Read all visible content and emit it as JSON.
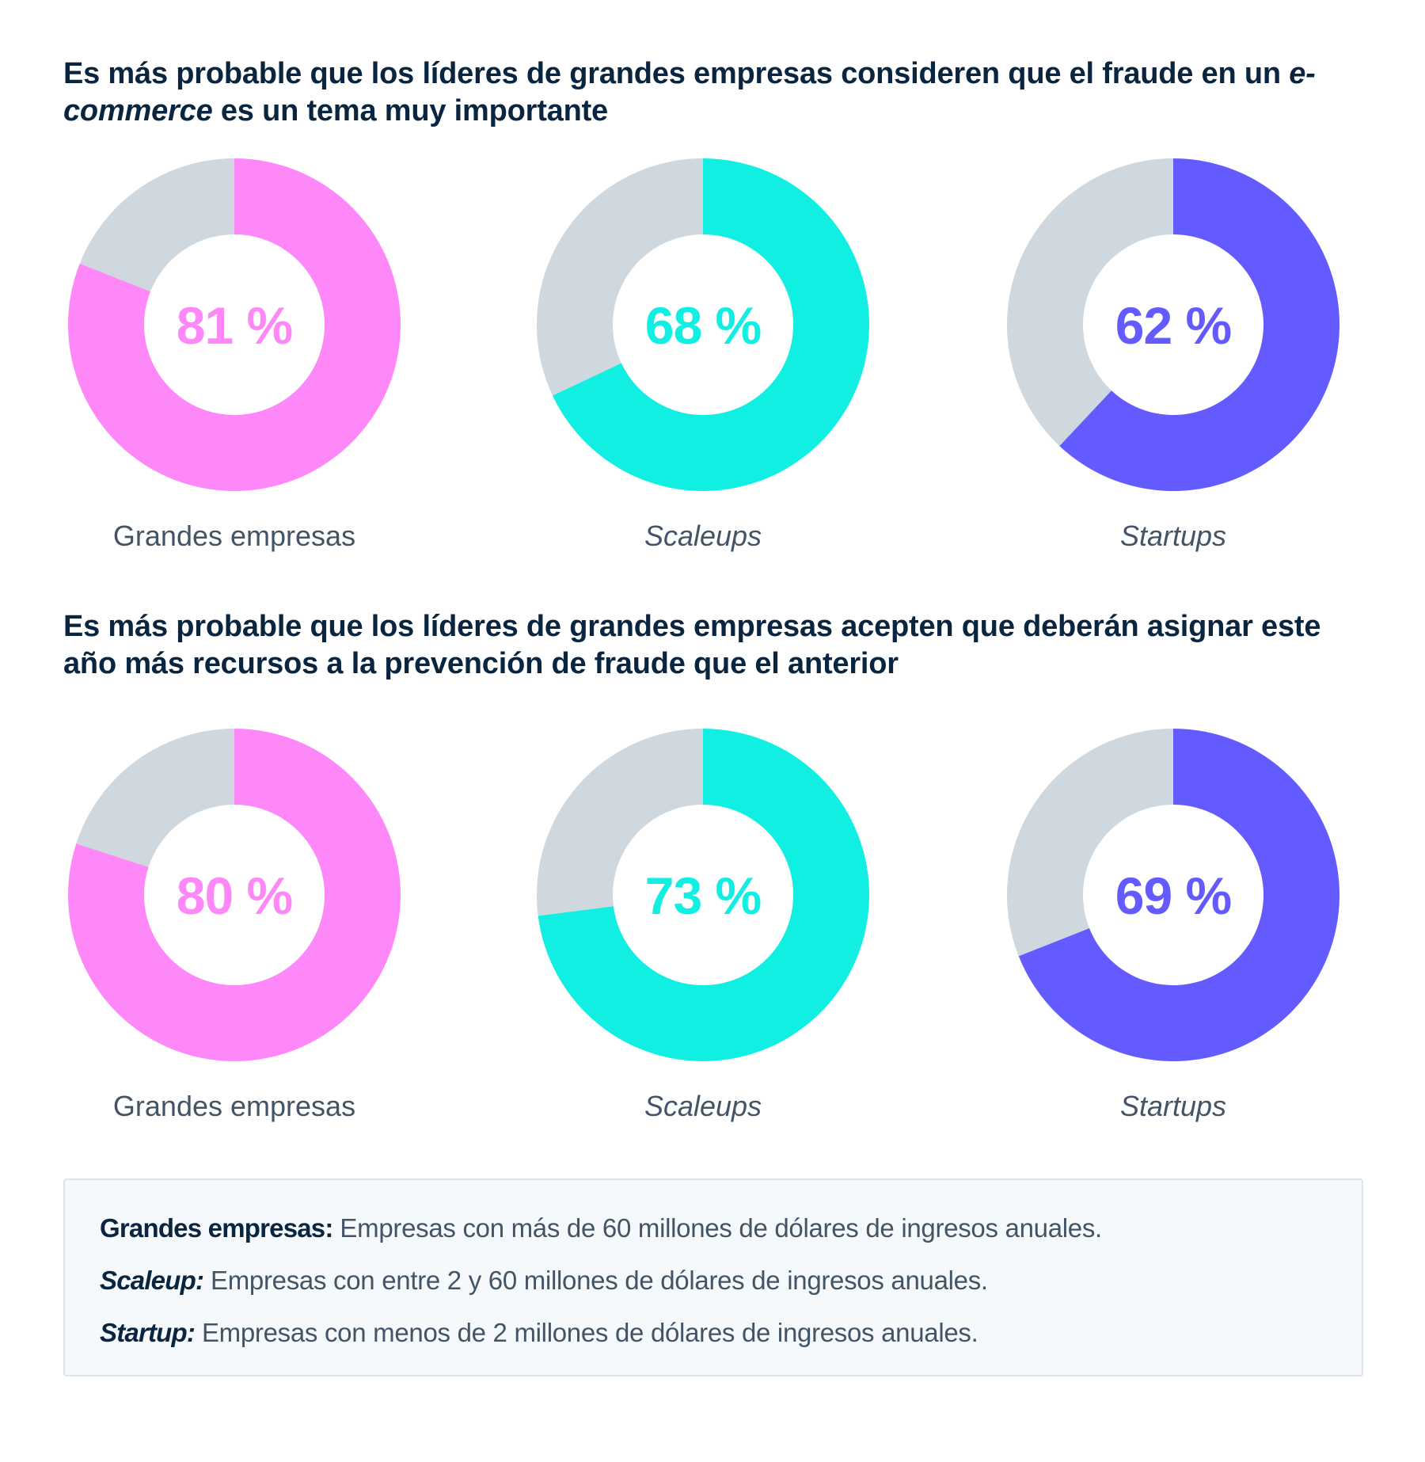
{
  "titles": [
    {
      "part1": "Es más probable que los líderes de grandes empresas consideren que el fraude en un ",
      "italic": "e-commerce",
      "part2": " es un tema muy importante"
    },
    {
      "text": "Es más probable que los líderes de grandes empresas acepten que deberán asignar este año más recursos a la prevención de fraude que el anterior"
    }
  ],
  "colors": {
    "grandes": "#ff88f9",
    "scaleups": "#11efe3",
    "startups": "#635bff",
    "remainder": "#cfd7df"
  },
  "chart_data": [
    {
      "type": "pie",
      "title": "Es más probable que los líderes de grandes empresas consideren que el fraude en un e-commerce es un tema muy importante",
      "categories": [
        "Grandes empresas",
        "Scaleups",
        "Startups"
      ],
      "values": [
        81,
        68,
        62
      ],
      "labels": [
        "81 %",
        "68 %",
        "62 %"
      ]
    },
    {
      "type": "pie",
      "title": "Es más probable que los líderes de grandes empresas acepten que deberán asignar este año más recursos a la prevención de fraude que el anterior",
      "categories": [
        "Grandes empresas",
        "Scaleups",
        "Startups"
      ],
      "values": [
        80,
        73,
        69
      ],
      "labels": [
        "80 %",
        "73 %",
        "69 %"
      ]
    }
  ],
  "legend": [
    {
      "term": "Grandes empresas:",
      "desc": " Empresas con más de 60 millones de dólares de ingresos anuales."
    },
    {
      "term": "Scaleup:",
      "desc": " Empresas con entre 2 y 60 millones de dólares de ingresos anuales."
    },
    {
      "term": "Startup:",
      "desc": " Empresas con menos de 2 millones de dólares de ingresos anuales."
    }
  ]
}
